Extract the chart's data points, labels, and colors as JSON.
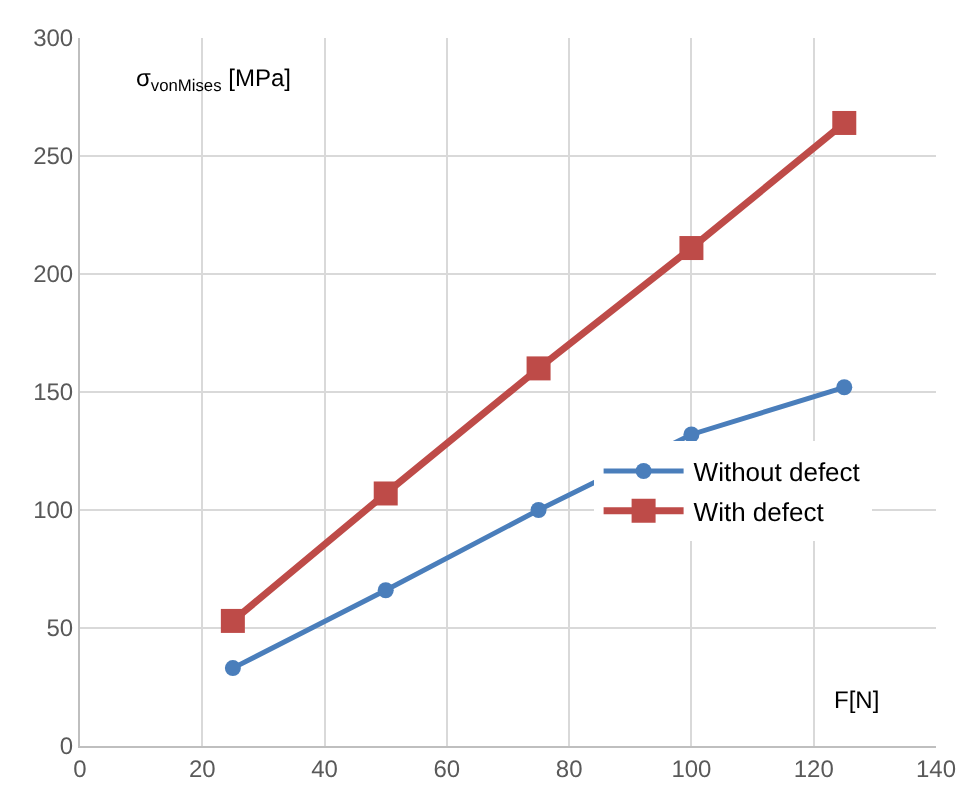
{
  "chart_data": {
    "type": "line",
    "xlabel": "F[N]",
    "ylabel": "σ$_{vonMises}$ [MPa]",
    "x": [
      25,
      50,
      75,
      100,
      125
    ],
    "series": [
      {
        "name": "Without defect",
        "color": "#4a7ebb",
        "values": [
          33,
          66,
          100,
          132,
          152
        ],
        "marker": "circle"
      },
      {
        "name": "With defect",
        "color": "#be4b48",
        "values": [
          53,
          107,
          160,
          211,
          264
        ],
        "marker": "square"
      }
    ],
    "xlim": [
      0,
      140
    ],
    "xticks": [
      0,
      20,
      40,
      60,
      80,
      100,
      120,
      140
    ],
    "ylim": [
      0,
      300
    ],
    "yticks": [
      0,
      50,
      100,
      150,
      200,
      250,
      300
    ],
    "grid": true,
    "legend": "right"
  }
}
